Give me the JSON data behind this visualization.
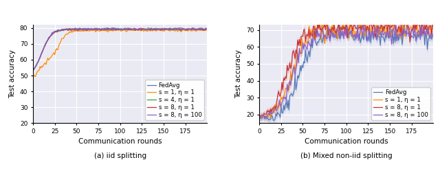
{
  "left_plot": {
    "title": "(a) iid splitting",
    "xlabel": "Communication rounds",
    "ylabel": "Test accuracy",
    "ylim": [
      20,
      82
    ],
    "xlim": [
      0,
      200
    ],
    "yticks": [
      20,
      30,
      40,
      50,
      60,
      70,
      80
    ],
    "xticks": [
      0,
      25,
      50,
      75,
      100,
      125,
      150,
      175
    ],
    "lines": [
      {
        "label": "FedAvg",
        "color": "#5578b4",
        "lw": 0.9
      },
      {
        "label": "s = 1, η = 1",
        "color": "#ff8c00",
        "lw": 0.9
      },
      {
        "label": "s = 4, η = 1",
        "color": "#3a9e3a",
        "lw": 0.9
      },
      {
        "label": "s = 8, η = 1",
        "color": "#c83232",
        "lw": 0.9
      },
      {
        "label": "s = 8, η = 100",
        "color": "#8b5fc8",
        "lw": 0.9
      }
    ]
  },
  "right_plot": {
    "title": "(b) Mixed non-iid splitting",
    "xlabel": "Communication rounds",
    "ylabel": "Test accuracy",
    "ylim": [
      15,
      73
    ],
    "xlim": [
      0,
      200
    ],
    "yticks": [
      20,
      30,
      40,
      50,
      60,
      70
    ],
    "xticks": [
      0,
      25,
      50,
      75,
      100,
      125,
      150,
      175
    ],
    "lines": [
      {
        "label": "FedAvg",
        "color": "#5578b4",
        "lw": 0.9
      },
      {
        "label": "s = 1, η = 1",
        "color": "#ff8c00",
        "lw": 0.9
      },
      {
        "label": "s = 8, η = 1",
        "color": "#c83232",
        "lw": 0.9
      },
      {
        "label": "s = 8, η = 100",
        "color": "#8b5fc8",
        "lw": 0.9
      }
    ]
  },
  "legend_fontsize": 6.2,
  "tick_fontsize": 6.5,
  "label_fontsize": 7.5,
  "title_fontsize": 7.5,
  "background_color": "#eaeaf4",
  "grid_color": "#ffffff",
  "grid_lw": 0.8
}
